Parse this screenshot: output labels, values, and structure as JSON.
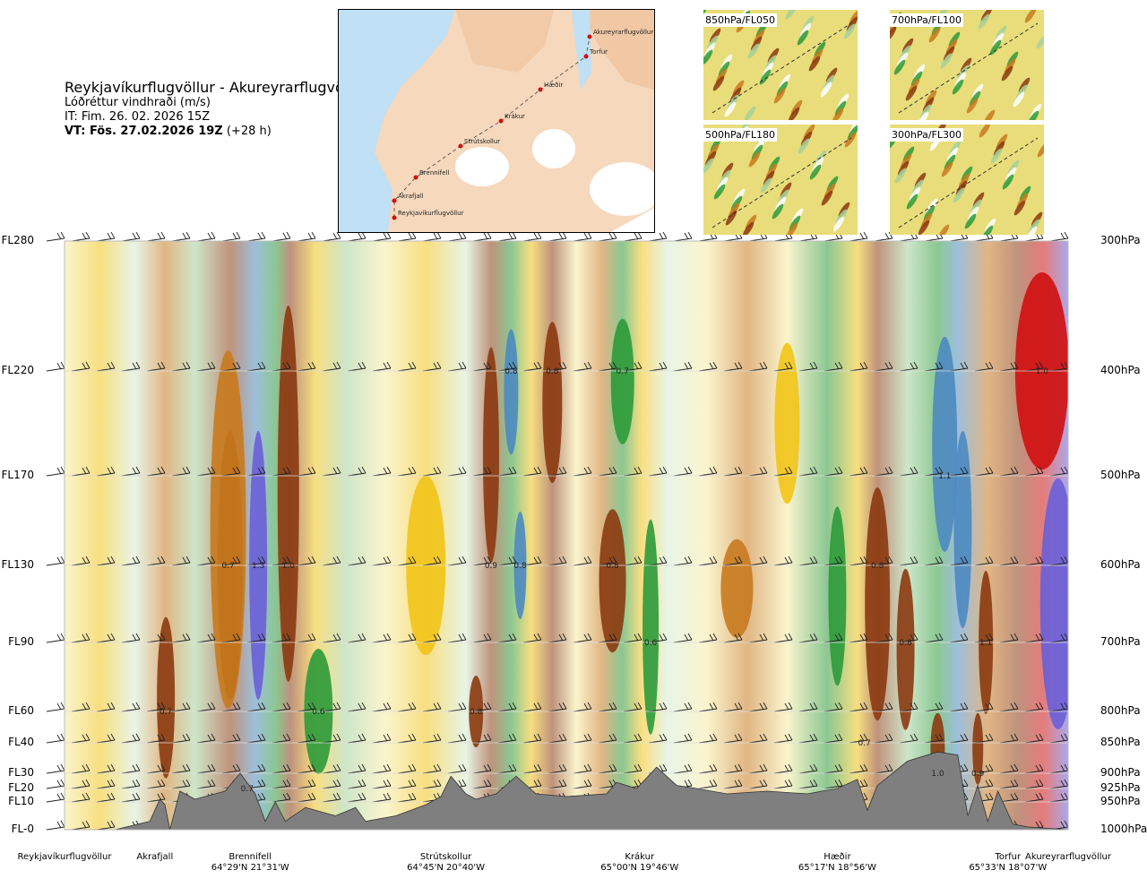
{
  "header": {
    "title": "Reykjavíkurflugvöllur - Akureyrarflugvöllur",
    "subtitle": "Lóðréttur vindhraði (m/s)",
    "it": "IT: Fim. 26. 02. 2026 15Z",
    "vt_bold": "VT: Fös. 27.02.2026 19Z",
    "vt_rest": "(+28 h)"
  },
  "map": {
    "points": [
      "Reykjavíkurflugvöllur",
      "Akrafjall",
      "Brennifell",
      "Strútskollur",
      "Krákur",
      "Hæðir",
      "Torfur",
      "Akureyrarflugvöllur"
    ]
  },
  "thumbnails": [
    {
      "label": "850hPa/FL050"
    },
    {
      "label": "700hPa/FL100"
    },
    {
      "label": "500hPa/FL180"
    },
    {
      "label": "300hPa/FL300"
    }
  ],
  "colors": {
    "strong_up": "#8b3a10",
    "up": "#c87a1e",
    "weak_up": "#f2c418",
    "faint_up": "#f7eca4",
    "neutral": "#ffffff",
    "faint_down": "#d6ecd2",
    "weak_down": "#a5d19c",
    "down": "#2c9a3a",
    "strong_down": "#4d8ac0",
    "very_strong_down": "#6a5fd6",
    "extreme": "#cf1010",
    "terrain": "#7f7f7f"
  },
  "chart_data": {
    "type": "heatmap",
    "y_axis_left": [
      {
        "label": "FL280",
        "p": 300
      },
      {
        "label": "FL220",
        "p": 400
      },
      {
        "label": "FL170",
        "p": 500
      },
      {
        "label": "FL130",
        "p": 600
      },
      {
        "label": "FL90",
        "p": 700
      },
      {
        "label": "FL60",
        "p": 800
      },
      {
        "label": "FL40",
        "p": 850
      },
      {
        "label": "FL30",
        "p": 900
      },
      {
        "label": "FL20",
        "p": 925
      },
      {
        "label": "FL10",
        "p": 950
      },
      {
        "label": "FL-0",
        "p": 1000
      }
    ],
    "y_axis_right": [
      "300hPa",
      "400hPa",
      "500hPa",
      "600hPa",
      "700hPa",
      "800hPa",
      "850hPa",
      "900hPa",
      "925hPa",
      "950hPa",
      "1000hPa"
    ],
    "locations": [
      {
        "name": "Reykjavíkurflugvöllur",
        "coord": "",
        "pos": 0.0
      },
      {
        "name": "Akrafjall",
        "coord": "",
        "pos": 0.09
      },
      {
        "name": "Brennifell",
        "coord": "64°29'N 21°31'W",
        "pos": 0.185
      },
      {
        "name": "Strútskollur",
        "coord": "64°45'N 20°40'W",
        "pos": 0.38
      },
      {
        "name": "Krákur",
        "coord": "65°00'N 19°46'W",
        "pos": 0.573
      },
      {
        "name": "Hæðir",
        "coord": "65°17'N 18°56'W",
        "pos": 0.77
      },
      {
        "name": "Torfur",
        "coord": "65°33'N 18°07'W",
        "pos": 0.94
      },
      {
        "name": "Akureyrarflugvöllur",
        "coord": "",
        "pos": 1.0
      }
    ],
    "annotations": [
      {
        "text": "0.8",
        "pos": 0.445,
        "p": 400
      },
      {
        "text": "0.8",
        "pos": 0.486,
        "p": 400
      },
      {
        "text": "0.7",
        "pos": 0.556,
        "p": 400
      },
      {
        "text": "1.0",
        "pos": 0.974,
        "p": 400
      },
      {
        "text": "1.1",
        "pos": 0.877,
        "p": 500
      },
      {
        "text": "0.7",
        "pos": 0.163,
        "p": 600
      },
      {
        "text": "1.3",
        "pos": 0.193,
        "p": 600
      },
      {
        "text": "1.0",
        "pos": 0.223,
        "p": 600
      },
      {
        "text": "0.9",
        "pos": 0.425,
        "p": 600
      },
      {
        "text": "0.8",
        "pos": 0.454,
        "p": 600
      },
      {
        "text": "0.8",
        "pos": 0.546,
        "p": 600
      },
      {
        "text": "0.8",
        "pos": 0.81,
        "p": 600
      },
      {
        "text": "0.6",
        "pos": 0.584,
        "p": 700
      },
      {
        "text": "0.8",
        "pos": 0.838,
        "p": 700
      },
      {
        "text": "1.1",
        "pos": 0.918,
        "p": 700
      },
      {
        "text": "0.7",
        "pos": 0.101,
        "p": 800
      },
      {
        "text": "0.6",
        "pos": 0.253,
        "p": 800
      },
      {
        "text": "0.8",
        "pos": 0.41,
        "p": 800
      },
      {
        "text": "0.7",
        "pos": 0.797,
        "p": 850
      },
      {
        "text": "1.0",
        "pos": 0.87,
        "p": 900
      },
      {
        "text": "0.9",
        "pos": 0.91,
        "p": 900
      },
      {
        "text": "0.7",
        "pos": 0.182,
        "p": 925
      }
    ]
  }
}
